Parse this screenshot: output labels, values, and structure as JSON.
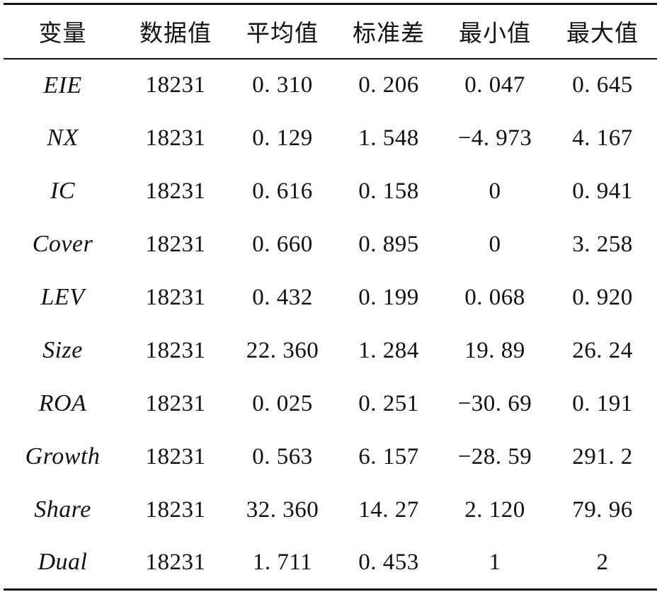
{
  "table": {
    "headers": [
      "变量",
      "数据值",
      "平均值",
      "标准差",
      "最小值",
      "最大值"
    ],
    "rows": [
      [
        "EIE",
        "18231",
        "0. 310",
        "0. 206",
        "0. 047",
        "0. 645"
      ],
      [
        "NX",
        "18231",
        "0. 129",
        "1. 548",
        "−4. 973",
        "4. 167"
      ],
      [
        "IC",
        "18231",
        "0. 616",
        "0. 158",
        "0",
        "0. 941"
      ],
      [
        "Cover",
        "18231",
        "0. 660",
        "0. 895",
        "0",
        "3. 258"
      ],
      [
        "LEV",
        "18231",
        "0. 432",
        "0. 199",
        "0. 068",
        "0. 920"
      ],
      [
        "Size",
        "18231",
        "22. 360",
        "1. 284",
        "19. 89",
        "26. 24"
      ],
      [
        "ROA",
        "18231",
        "0. 025",
        "0. 251",
        "−30. 69",
        "0. 191"
      ],
      [
        "Growth",
        "18231",
        "0. 563",
        "6. 157",
        "−28. 59",
        "291. 2"
      ],
      [
        "Share",
        "18231",
        "32. 360",
        "14. 27",
        "2. 120",
        "79. 96"
      ],
      [
        "Dual",
        "18231",
        "1. 711",
        "0. 453",
        "1",
        "2"
      ]
    ]
  }
}
